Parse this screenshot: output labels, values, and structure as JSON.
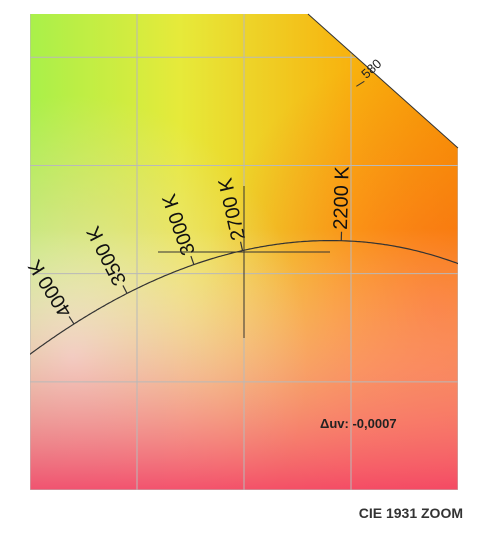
{
  "chart_data": {
    "type": "line",
    "title": "CIE 1931 ZOOM",
    "planckian_locus": {
      "cct_labels": [
        "4000 K",
        "3500 K",
        "3000 K",
        "2700 K",
        "2200 K"
      ],
      "cct_points": [
        {
          "cct": 4000,
          "x": 0.3805,
          "y": 0.3768
        },
        {
          "cct": 3500,
          "x": 0.4053,
          "y": 0.3907
        },
        {
          "cct": 3000,
          "x": 0.4369,
          "y": 0.4041
        },
        {
          "cct": 2700,
          "x": 0.4599,
          "y": 0.4106
        },
        {
          "cct": 2200,
          "x": 0.5018,
          "y": 0.4153
        }
      ]
    },
    "spectral_locus_label": "580",
    "spectral_point": {
      "x": 0.5125,
      "y": 0.4866
    },
    "measured_point": {
      "x": 0.46,
      "y": 0.41
    },
    "duv_text": "Δuv: -0,0007",
    "xlim": [
      0.36,
      0.56
    ],
    "ylim": [
      0.3,
      0.52
    ],
    "grid": true,
    "colors": {
      "grid": "#b9b9b9",
      "locus": "#333333",
      "crosshair": "#333333",
      "background": "#ffffff"
    }
  }
}
